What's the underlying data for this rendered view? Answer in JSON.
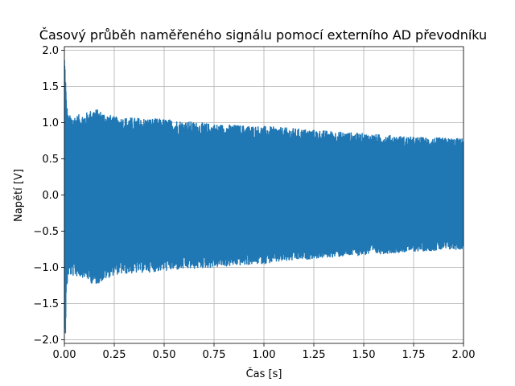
{
  "chart_data": {
    "type": "line",
    "title": "Časový průběh naměřeného signálu pomocí externího AD převodníku",
    "xlabel": "Čas [s]",
    "ylabel": "Napětí [V]",
    "xlim": [
      0,
      2.0
    ],
    "ylim": [
      -2.05,
      2.05
    ],
    "grid": true,
    "x_ticks": [
      "0.00",
      "0.25",
      "0.50",
      "0.75",
      "1.00",
      "1.25",
      "1.50",
      "1.75",
      "2.00"
    ],
    "y_ticks": [
      "−2.0",
      "−1.5",
      "−1.0",
      "−0.5",
      "0.0",
      "0.5",
      "1.0",
      "1.5",
      "2.0"
    ],
    "series": [
      {
        "color": "#1f77b4",
        "envelope": {
          "t": [
            0.0,
            0.005,
            0.01,
            0.02,
            0.05,
            0.1,
            0.15,
            0.25,
            0.5,
            0.75,
            1.0,
            1.25,
            1.5,
            1.75,
            2.0
          ],
          "upper": [
            2.0,
            1.75,
            1.3,
            1.1,
            1.1,
            1.12,
            1.2,
            1.08,
            1.05,
            0.98,
            0.95,
            0.9,
            0.85,
            0.8,
            0.78
          ],
          "lower": [
            -1.7,
            -2.0,
            -1.35,
            -1.12,
            -1.12,
            -1.14,
            -1.25,
            -1.1,
            -1.05,
            -1.0,
            -0.95,
            -0.88,
            -0.83,
            -0.78,
            -0.75
          ]
        }
      }
    ]
  }
}
